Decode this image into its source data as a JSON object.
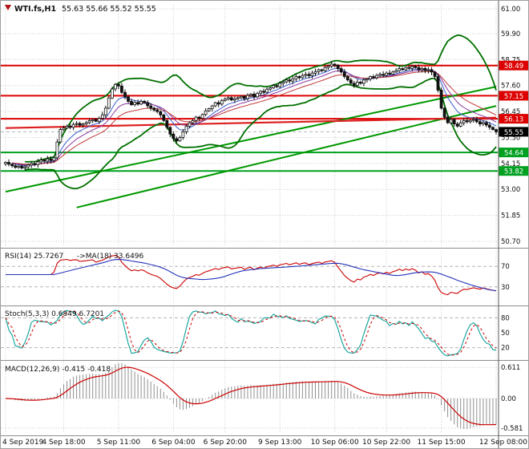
{
  "title": {
    "symbol": "WTI.fs,H1",
    "ohlc": "55.63 55.66 55.52 55.55",
    "marker_color": "#b01212"
  },
  "colors": {
    "background": "#ffffff",
    "grid": "#cccccc",
    "separator": "#8c8c8c",
    "axis_line": "#555555",
    "axis_text": "#111111",
    "candle": "#111111"
  },
  "chart_data": [
    {
      "name": "price",
      "type": "candlestick",
      "symbol": "WTI.fs",
      "timeframe": "H1",
      "ohlc_display": {
        "open": "55.63",
        "high": "55.66",
        "low": "55.52",
        "close": "55.55"
      },
      "x_labels": [
        "4 Sep 2019",
        "4 Sep 18:00",
        "5 Sep 11:00",
        "6 Sep 04:00",
        "6 Sep 20:00",
        "9 Sep 13:00",
        "10 Sep 06:00",
        "10 Sep 22:00",
        "11 Sep 15:00",
        "12 Sep 08:00"
      ],
      "x_label_indices": [
        0,
        18,
        35,
        52,
        68,
        85,
        102,
        118,
        135,
        152
      ],
      "y_ticks": [
        "61.00",
        "59.90",
        "58.75",
        "57.60",
        "56.45",
        "55.30",
        "54.15",
        "53.00",
        "51.85",
        "50.70"
      ],
      "ylim": [
        50.49,
        61.21
      ],
      "grid": true,
      "legend_position": "none",
      "closes": [
        54.2,
        54.12,
        54.05,
        53.98,
        54.03,
        53.95,
        54.0,
        54.08,
        54.15,
        54.1,
        54.22,
        54.3,
        54.25,
        54.35,
        54.28,
        54.4,
        55.1,
        55.65,
        55.72,
        55.8,
        55.75,
        55.88,
        55.92,
        55.85,
        55.9,
        55.96,
        56.05,
        56.1,
        56.02,
        56.15,
        56.3,
        56.6,
        57.05,
        57.45,
        57.65,
        57.58,
        57.3,
        57.1,
        56.9,
        56.75,
        56.85,
        56.78,
        56.9,
        56.84,
        56.7,
        56.6,
        56.52,
        56.45,
        56.3,
        56.05,
        55.75,
        55.45,
        55.25,
        55.15,
        55.3,
        55.55,
        55.8,
        55.95,
        56.05,
        56.2,
        56.15,
        56.32,
        56.48,
        56.58,
        56.7,
        56.84,
        56.78,
        56.94,
        57.0,
        57.06,
        56.96,
        57.02,
        57.06,
        57.12,
        57.02,
        57.16,
        57.22,
        57.1,
        57.26,
        57.35,
        57.3,
        57.44,
        57.5,
        57.6,
        57.55,
        57.7,
        57.76,
        57.85,
        57.8,
        57.9,
        58.0,
        57.95,
        58.05,
        58.1,
        58.04,
        58.15,
        58.22,
        58.3,
        58.26,
        58.4,
        58.46,
        58.55,
        58.5,
        58.35,
        58.2,
        58.0,
        57.85,
        57.7,
        57.6,
        57.75,
        57.7,
        57.85,
        57.9,
        58.0,
        57.95,
        58.05,
        58.1,
        58.05,
        58.15,
        58.1,
        58.2,
        58.26,
        58.35,
        58.3,
        58.4,
        58.36,
        58.45,
        58.4,
        58.3,
        58.36,
        58.26,
        58.3,
        58.2,
        58.0,
        57.4,
        56.6,
        56.2,
        55.95,
        56.1,
        55.9,
        55.8,
        55.95,
        56.05,
        56.0,
        56.06,
        56.1,
        56.0,
        55.9,
        55.96,
        55.85,
        55.75,
        55.65,
        55.55
      ],
      "levels": [
        {
          "value": 58.49,
          "label": "58.49",
          "color": "#dd0000",
          "kind": "resistance"
        },
        {
          "value": 57.15,
          "label": "57.15",
          "color": "#dd0000",
          "kind": "resistance"
        },
        {
          "value": 56.13,
          "label": "56.13",
          "color": "#dd0000",
          "kind": "resistance"
        },
        {
          "value": 54.64,
          "label": "54.64",
          "color": "#00a020",
          "kind": "support"
        },
        {
          "value": 53.82,
          "label": "53.82",
          "color": "#00a020",
          "kind": "support"
        }
      ],
      "current_price": {
        "value": 55.55,
        "label": "55.55",
        "bg": "#000000"
      },
      "trendlines": [
        {
          "i1": 0,
          "p1": 52.9,
          "i2": 152,
          "p2": 57.55,
          "color": "#009900",
          "width": 2
        },
        {
          "i1": 22,
          "p1": 52.2,
          "i2": 152,
          "p2": 56.7,
          "color": "#009900",
          "width": 2
        },
        {
          "i1": 0,
          "p1": 55.72,
          "i2": 152,
          "p2": 56.18,
          "color": "#dd2020",
          "width": 2.2
        }
      ],
      "bollinger": {
        "period": 20,
        "deviation": 2.2,
        "color": "#007000"
      },
      "ma_ribbon": [
        {
          "period": 8,
          "color": "#3a5fcd"
        },
        {
          "period": 13,
          "color": "#8b3a9e"
        },
        {
          "period": 21,
          "color": "#c23b3b"
        }
      ]
    },
    {
      "name": "rsi",
      "type": "line",
      "label": "RSI(14) 25.7267",
      "ma_label": "->MA(18) 33.6496",
      "period": 14,
      "ma_period": 18,
      "current": 25.7267,
      "ma_current": 33.6496,
      "levels": [
        70,
        30
      ],
      "y_ticks": [
        "70",
        "30"
      ],
      "ylim": [
        0,
        100
      ],
      "line_color": "#cc0000",
      "ma_color": "#2233bb",
      "source": "derived from price closes"
    },
    {
      "name": "stochastic",
      "type": "line",
      "label": "Stoch(5,3,3) 0.6849 6.7201",
      "k_period": 5,
      "d_period": 3,
      "slowing": 3,
      "current_k": 0.6849,
      "current_d": 6.7201,
      "levels": [
        80,
        20
      ],
      "y_ticks": [
        "80",
        "50",
        "20"
      ],
      "ylim": [
        0,
        100
      ],
      "k_color": "#1fa8a0",
      "d_color": "#cc0000",
      "source": "derived from price closes"
    },
    {
      "name": "macd",
      "type": "histogram+line",
      "label": "MACD(12,26,9) -0.415 -0.418",
      "fast": 12,
      "slow": 26,
      "signal": 9,
      "current_macd": -0.415,
      "current_signal": -0.418,
      "y_ticks": [
        "0.611",
        "0.00",
        "-0.581"
      ],
      "y_tick_values": [
        0.611,
        0.0,
        -0.581
      ],
      "histogram_color": "#909090",
      "signal_color": "#cc0000",
      "source": "derived from price closes"
    }
  ]
}
